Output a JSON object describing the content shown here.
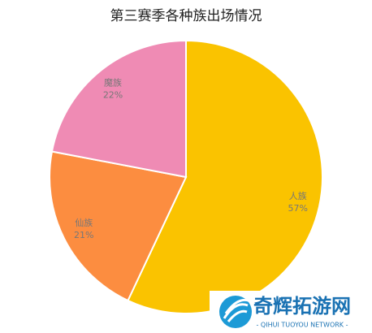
{
  "chart_data": {
    "type": "pie",
    "title": "第三赛季各种族出场情况",
    "categories": [
      "人族",
      "仙族",
      "魔族"
    ],
    "values": [
      57,
      21,
      22
    ],
    "value_labels": [
      "57%",
      "21%",
      "22%"
    ],
    "colors": [
      "#fac300",
      "#fc8d40",
      "#ef8bb4"
    ]
  },
  "watermark": {
    "title": "奇辉拓游网",
    "subtitle": "- QIHUI TUOYOU NETWORK -"
  }
}
